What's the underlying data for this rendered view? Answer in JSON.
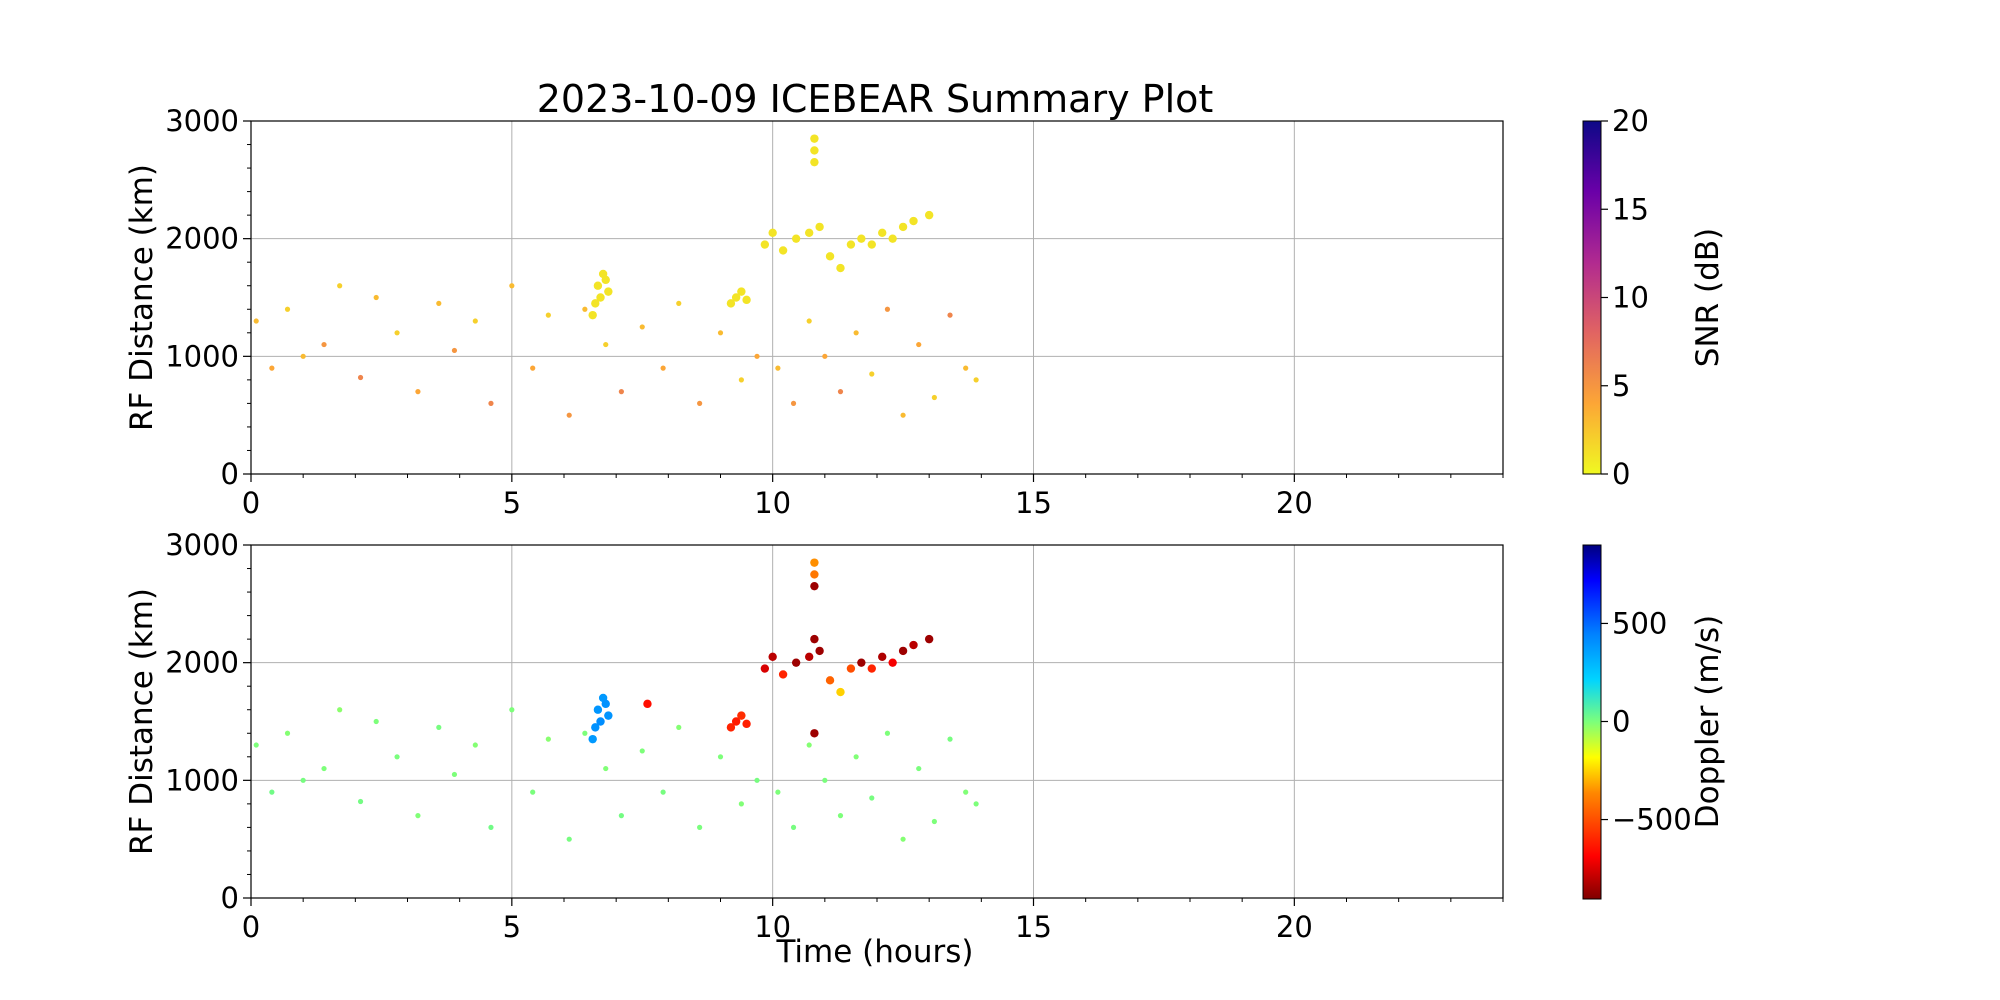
{
  "chart_data": {
    "type": "scatter",
    "title": "2023-10-09 ICEBEAR Summary Plot",
    "xlabel": "Time (hours)",
    "xlim": [
      0,
      24
    ],
    "x_ticks": [
      "0",
      "5",
      "10",
      "15",
      "20"
    ],
    "grid": true,
    "panels": [
      {
        "ylabel": "RF Distance (km)",
        "ylim": [
          0,
          3000
        ],
        "y_ticks": [
          "0",
          "1000",
          "2000",
          "3000"
        ],
        "colorbar": {
          "label": "SNR (dB)",
          "range": [
            0,
            20
          ],
          "ticks": [
            "0",
            "5",
            "10",
            "15",
            "20"
          ],
          "colormap": "plasma_r"
        },
        "series": [
          {
            "x": [
              0.1,
              0.4,
              0.7,
              1.0,
              1.4,
              1.7,
              2.1,
              2.4,
              2.8,
              3.2,
              3.6,
              3.9,
              4.3,
              4.6,
              5.0,
              5.4,
              5.7,
              6.1,
              6.4,
              6.8,
              7.1,
              7.5,
              7.9,
              8.2,
              8.6,
              9.0,
              9.4,
              9.7
            ],
            "y": [
              1300,
              900,
              1400,
              1000,
              1100,
              1600,
              820,
              1500,
              1200,
              700,
              1450,
              1050,
              1300,
              600,
              1600,
              900,
              1350,
              500,
              1400,
              1100,
              700,
              1250,
              900,
              1450,
              600,
              1200,
              800,
              1000
            ],
            "snr": [
              3,
              4,
              2,
              3,
              5,
              2,
              6,
              3,
              2,
              4,
              3,
              5,
              2,
              6,
              3,
              4,
              2,
              5,
              3,
              2,
              6,
              3,
              4,
              2,
              5,
              3,
              2,
              4
            ]
          },
          {
            "x": [
              6.55,
              6.6,
              6.65,
              6.7,
              6.75,
              6.8,
              6.85
            ],
            "y": [
              1350,
              1450,
              1600,
              1500,
              1700,
              1650,
              1550
            ],
            "snr": [
              1,
              1,
              1,
              1,
              1,
              1,
              1
            ]
          },
          {
            "x": [
              9.2,
              9.3,
              9.4,
              9.5
            ],
            "y": [
              1450,
              1500,
              1550,
              1480
            ],
            "snr": [
              1,
              1,
              1,
              1
            ]
          },
          {
            "x": [
              9.85,
              10.0,
              10.2,
              10.45,
              10.7,
              10.9,
              11.1,
              11.3,
              11.5,
              11.7,
              11.9,
              12.1,
              12.3,
              12.5,
              12.7
            ],
            "y": [
              1950,
              2050,
              1900,
              2000,
              2050,
              2100,
              1850,
              1750,
              1950,
              2000,
              1950,
              2050,
              2000,
              2100,
              2150
            ],
            "snr": [
              1,
              1,
              1,
              1,
              1,
              1,
              1,
              1,
              1,
              1,
              1,
              1,
              1,
              1,
              1
            ]
          },
          {
            "x": [
              10.8,
              10.8,
              10.8,
              13.0
            ],
            "y": [
              2850,
              2750,
              2650,
              2200
            ],
            "snr": [
              1,
              1,
              1,
              1
            ]
          },
          {
            "x": [
              10.1,
              10.4,
              10.7,
              11.0,
              11.3,
              11.6,
              11.9,
              12.2,
              12.5,
              12.8,
              13.1,
              13.4,
              13.7,
              13.9
            ],
            "y": [
              900,
              600,
              1300,
              1000,
              700,
              1200,
              850,
              1400,
              500,
              1100,
              650,
              1350,
              900,
              800
            ],
            "snr": [
              3,
              5,
              2,
              4,
              6,
              3,
              2,
              5,
              3,
              4,
              2,
              6,
              3,
              2
            ]
          }
        ]
      },
      {
        "ylabel": "RF Distance (km)",
        "ylim": [
          0,
          3000
        ],
        "y_ticks": [
          "0",
          "1000",
          "2000",
          "3000"
        ],
        "colorbar": {
          "label": "Doppler (m/s)",
          "range": [
            -900,
            900
          ],
          "ticks": [
            "−500",
            "0",
            "500"
          ],
          "tick_values": [
            -500,
            0,
            500
          ],
          "colormap": "jet_r"
        },
        "series": [
          {
            "x": [
              0.1,
              0.4,
              0.7,
              1.0,
              1.4,
              1.7,
              2.1,
              2.4,
              2.8,
              3.2,
              3.6,
              3.9,
              4.3,
              4.6,
              5.0,
              5.4,
              5.7,
              6.1,
              6.4,
              6.8,
              7.1,
              7.5,
              7.9,
              8.2,
              8.6,
              9.0,
              9.4,
              9.7
            ],
            "y": [
              1300,
              900,
              1400,
              1000,
              1100,
              1600,
              820,
              1500,
              1200,
              700,
              1450,
              1050,
              1300,
              600,
              1600,
              900,
              1350,
              500,
              1400,
              1100,
              700,
              1250,
              900,
              1450,
              600,
              1200,
              800,
              1000
            ],
            "doppler": [
              0,
              20,
              -10,
              10,
              0,
              -20,
              15,
              0,
              5,
              -5,
              10,
              0,
              -10,
              20,
              0,
              5,
              -15,
              10,
              0,
              -5,
              15,
              0,
              10,
              -10,
              5,
              0,
              -5,
              10
            ]
          },
          {
            "x": [
              6.55,
              6.6,
              6.65,
              6.7,
              6.75,
              6.8,
              6.85
            ],
            "y": [
              1350,
              1450,
              1600,
              1500,
              1700,
              1650,
              1550
            ],
            "doppler": [
              380,
              400,
              390,
              410,
              380,
              400,
              395
            ]
          },
          {
            "x": [
              9.2,
              9.3,
              9.4,
              9.5,
              7.6
            ],
            "y": [
              1450,
              1500,
              1550,
              1480,
              1650
            ],
            "doppler": [
              -600,
              -620,
              -580,
              -610,
              -650
            ]
          },
          {
            "x": [
              9.85,
              10.0,
              10.2,
              10.45,
              10.7,
              10.9,
              11.1,
              11.3,
              11.5,
              11.7,
              11.9,
              12.1,
              12.3,
              12.5,
              12.7
            ],
            "y": [
              1950,
              2050,
              1900,
              2000,
              2050,
              2100,
              1850,
              1750,
              1950,
              2000,
              1950,
              2050,
              2000,
              2100,
              2150
            ],
            "doppler": [
              -750,
              -800,
              -600,
              -850,
              -800,
              -850,
              -450,
              -250,
              -500,
              -850,
              -600,
              -820,
              -700,
              -850,
              -800
            ]
          },
          {
            "x": [
              10.8,
              10.8,
              10.8,
              10.8,
              10.8,
              13.0
            ],
            "y": [
              2850,
              2750,
              2650,
              2200,
              1400,
              2200
            ],
            "doppler": [
              -350,
              -400,
              -850,
              -850,
              -850,
              -850
            ]
          },
          {
            "x": [
              10.1,
              10.4,
              10.7,
              11.0,
              11.3,
              11.6,
              11.9,
              12.2,
              12.5,
              12.8,
              13.1,
              13.4,
              13.7,
              13.9
            ],
            "y": [
              900,
              600,
              1300,
              1000,
              700,
              1200,
              850,
              1400,
              500,
              1100,
              650,
              1350,
              900,
              800
            ],
            "doppler": [
              0,
              10,
              -10,
              5,
              0,
              -5,
              10,
              0,
              -10,
              5,
              0,
              10,
              -5,
              0
            ]
          }
        ]
      }
    ]
  }
}
